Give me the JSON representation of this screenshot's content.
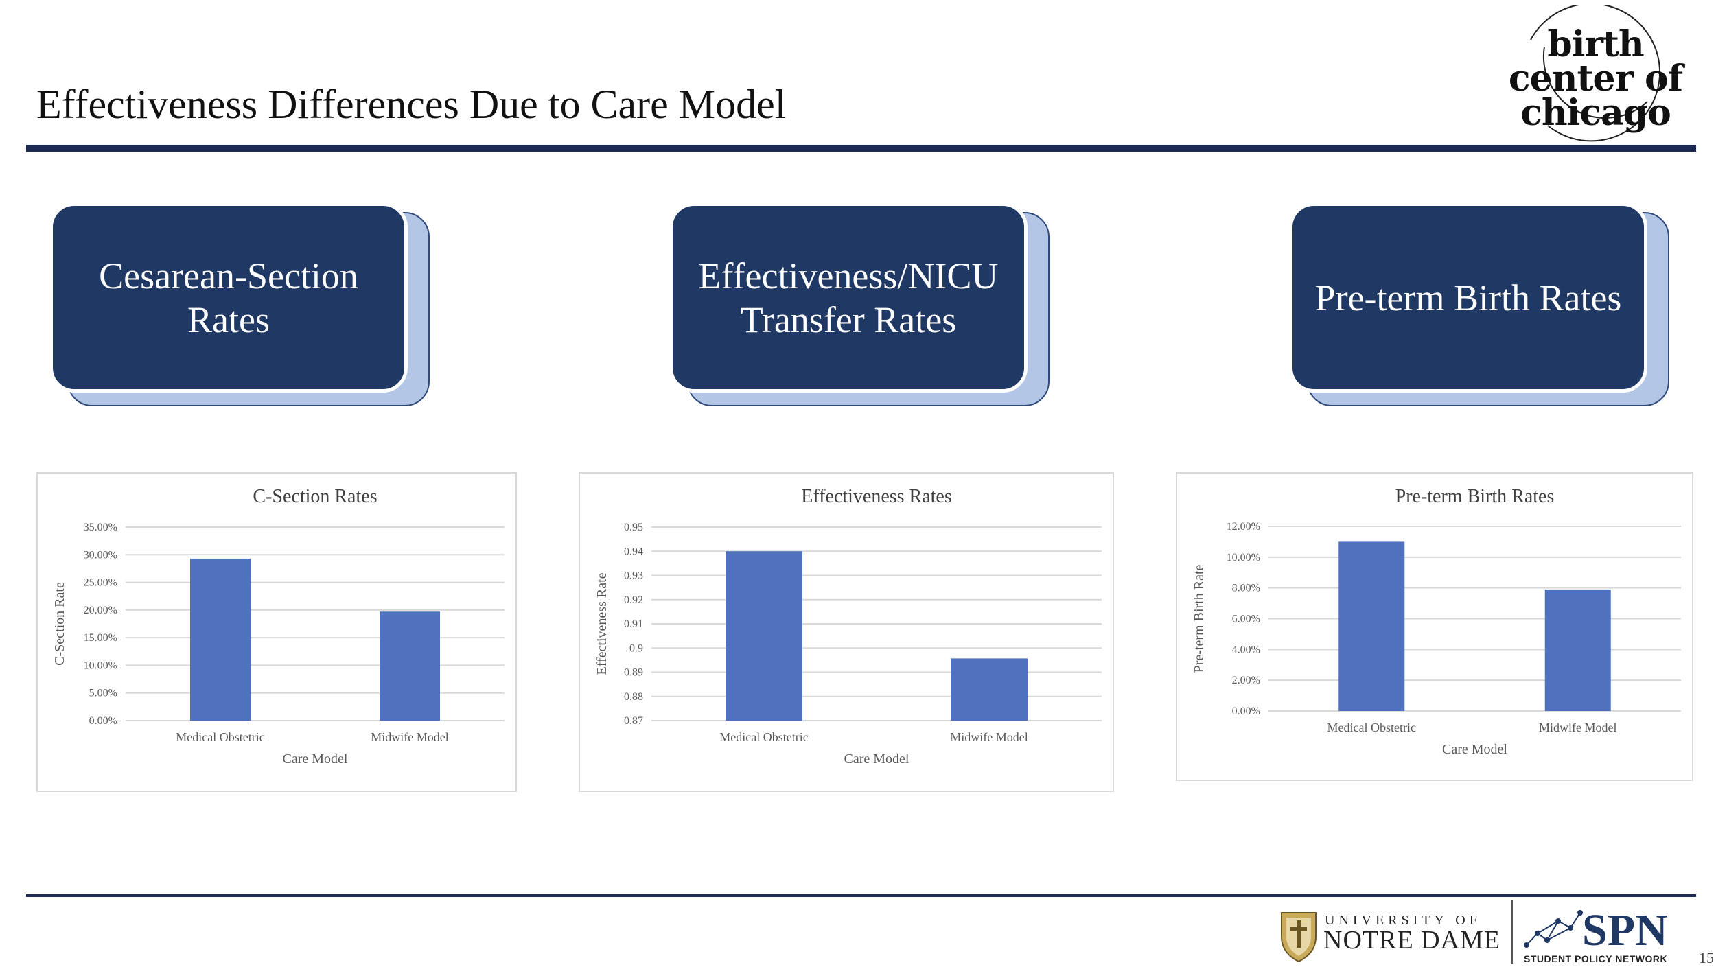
{
  "slide": {
    "title": "Effectiveness Differences Due to Care Model",
    "page_number": "15"
  },
  "logos": {
    "birth_center": "birth center of chicago",
    "nd_line1": "UNIVERSITY OF",
    "nd_line2": "NOTRE DAME",
    "spn": "SPN",
    "spn_sub": "STUDENT POLICY NETWORK"
  },
  "categories": [
    {
      "label": "Cesarean-Section Rates"
    },
    {
      "label": "Effectiveness/NICU Transfer Rates"
    },
    {
      "label": "Pre-term Birth Rates"
    }
  ],
  "colors": {
    "navy": "#1f3864",
    "bar": "#4f71be",
    "rule": "#1c2b54"
  },
  "chart_data": [
    {
      "type": "bar",
      "title": "C-Section Rates",
      "xlabel": "Care Model",
      "ylabel": "C-Section Rate",
      "categories": [
        "Medical Obstetric",
        "Midwife Model"
      ],
      "values": [
        0.293,
        0.197
      ],
      "ylim": [
        0,
        0.35
      ],
      "yticks": [
        0,
        0.05,
        0.1,
        0.15,
        0.2,
        0.25,
        0.3,
        0.35
      ],
      "ytick_labels": [
        "0.00%",
        "5.00%",
        "10.00%",
        "15.00%",
        "20.00%",
        "25.00%",
        "30.00%",
        "35.00%"
      ],
      "grid": true
    },
    {
      "type": "bar",
      "title": "Effectiveness Rates",
      "xlabel": "Care Model",
      "ylabel": "Effectiveness Rate",
      "categories": [
        "Medical Obstetric",
        "Midwife Model"
      ],
      "values": [
        0.94,
        0.8957
      ],
      "ylim": [
        0.87,
        0.95
      ],
      "yticks": [
        0.87,
        0.88,
        0.89,
        0.9,
        0.91,
        0.92,
        0.93,
        0.94,
        0.95
      ],
      "ytick_labels": [
        "0.87",
        "0.88",
        "0.89",
        "0.9",
        "0.91",
        "0.92",
        "0.93",
        "0.94",
        "0.95"
      ],
      "grid": true
    },
    {
      "type": "bar",
      "title": "Pre-term Birth Rates",
      "xlabel": "Care Model",
      "ylabel": "Pre-term Birth Rate",
      "categories": [
        "Medical Obstetric",
        "Midwife Model"
      ],
      "values": [
        0.11,
        0.079
      ],
      "ylim": [
        0,
        0.12
      ],
      "yticks": [
        0,
        0.02,
        0.04,
        0.06,
        0.08,
        0.1,
        0.12
      ],
      "ytick_labels": [
        "0.00%",
        "2.00%",
        "4.00%",
        "6.00%",
        "8.00%",
        "10.00%",
        "12.00%"
      ],
      "grid": true
    }
  ]
}
